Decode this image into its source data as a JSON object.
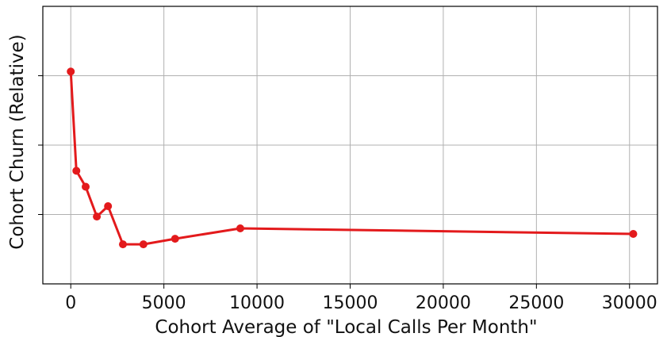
{
  "chart_data": {
    "type": "line",
    "xlabel": "Cohort Average of  \"Local Calls Per Month\"",
    "ylabel": "Cohort Churn (Relative)",
    "xlim": [
      -1500,
      31500
    ],
    "ylim": [
      0,
      4
    ],
    "xticks": [
      0,
      5000,
      10000,
      15000,
      20000,
      25000,
      30000
    ],
    "xtick_labels": [
      "0",
      "5000",
      "10000",
      "15000",
      "20000",
      "25000",
      "30000"
    ],
    "yticks": [
      1,
      2,
      3
    ],
    "ytick_labels": [
      "",
      "",
      ""
    ],
    "grid": true,
    "series": [
      {
        "color": "#e31a1c",
        "marker": "circle",
        "points": [
          {
            "x": 0,
            "y": 3.06
          },
          {
            "x": 300,
            "y": 1.63
          },
          {
            "x": 800,
            "y": 1.4
          },
          {
            "x": 1400,
            "y": 0.97
          },
          {
            "x": 2000,
            "y": 1.12
          },
          {
            "x": 2800,
            "y": 0.57
          },
          {
            "x": 3900,
            "y": 0.57
          },
          {
            "x": 5600,
            "y": 0.65
          },
          {
            "x": 9100,
            "y": 0.8
          },
          {
            "x": 30200,
            "y": 0.72
          }
        ]
      }
    ]
  }
}
